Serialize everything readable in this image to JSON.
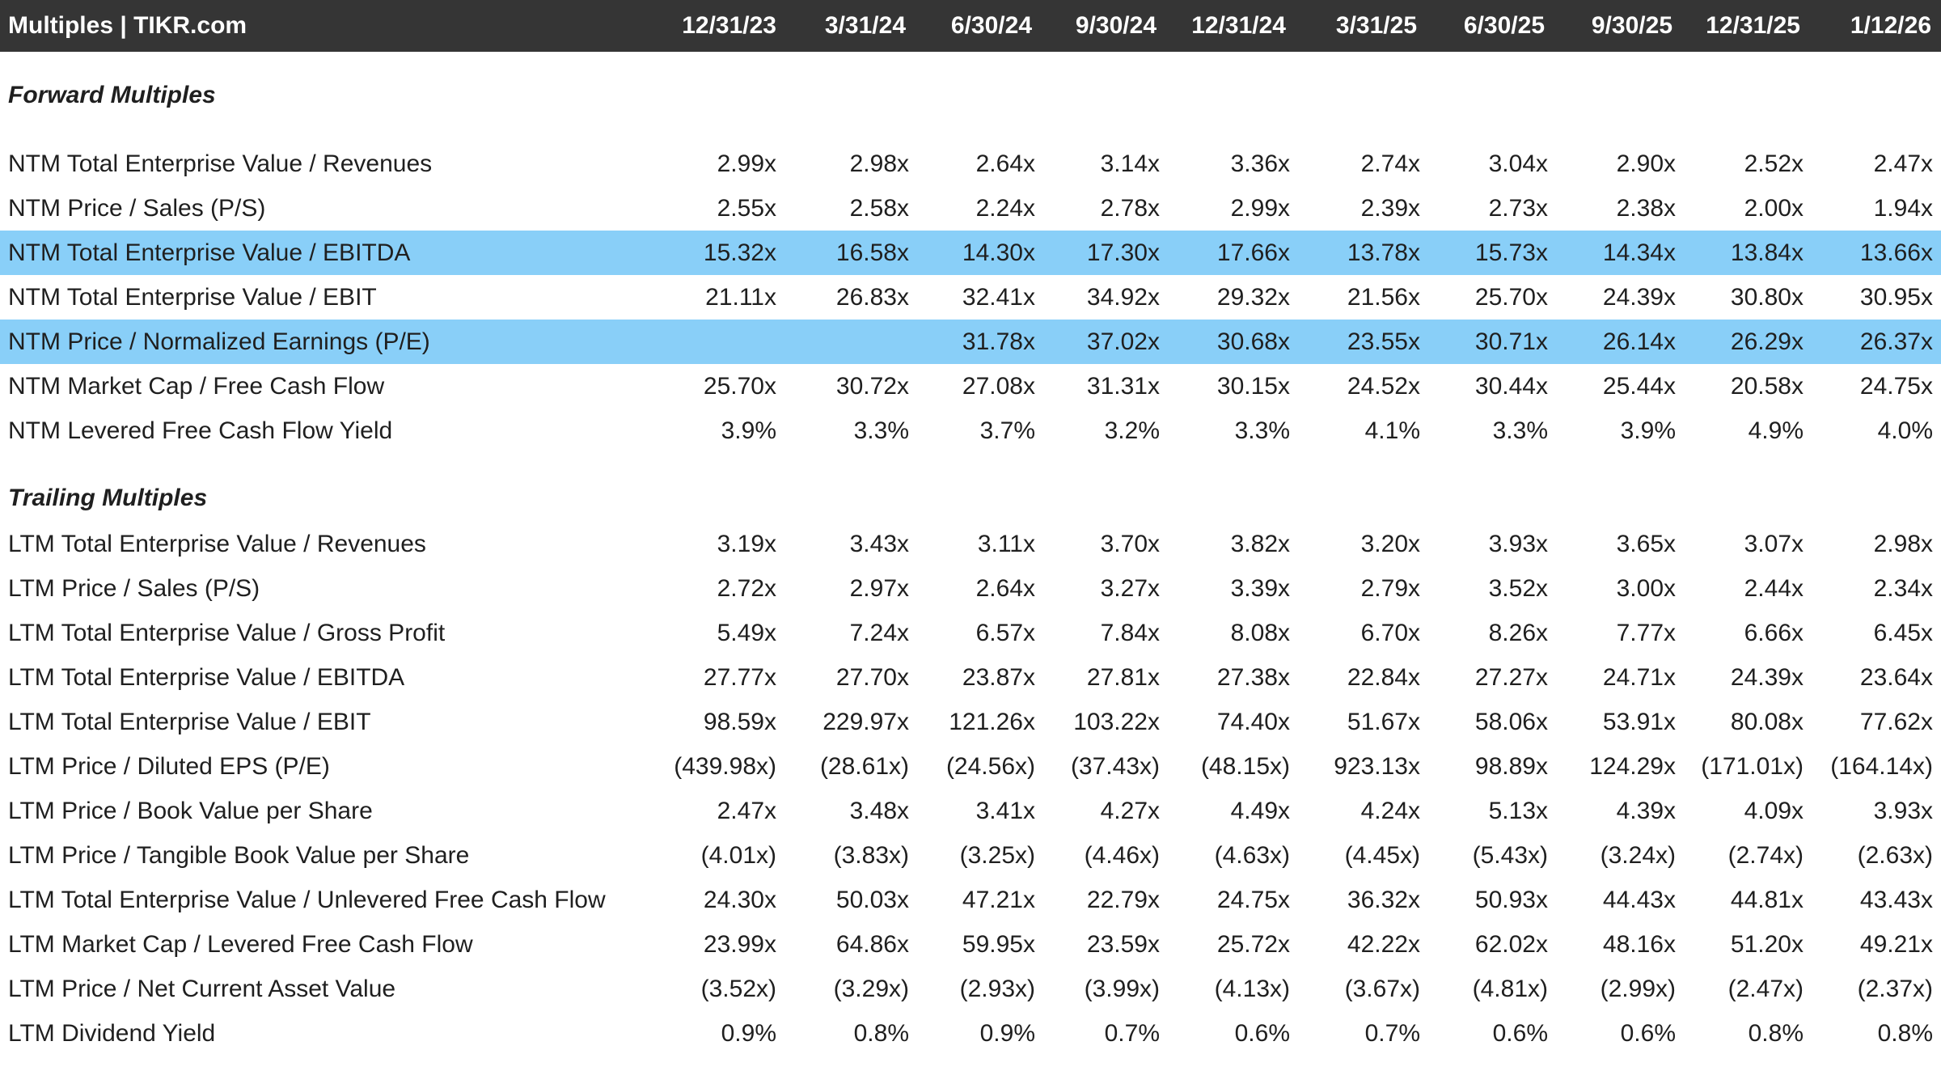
{
  "header": {
    "title": "Multiples | TIKR.com",
    "dates": [
      "12/31/23",
      "3/31/24",
      "6/30/24",
      "9/30/24",
      "12/31/24",
      "3/31/25",
      "6/30/25",
      "9/30/25",
      "12/31/25",
      "1/12/26"
    ]
  },
  "colors": {
    "header_bg": "#353535",
    "highlight": "#89cff8"
  },
  "sections": [
    {
      "title": "Forward Multiples",
      "rows": [
        {
          "label": "NTM Total Enterprise Value / Revenues",
          "highlight": false,
          "values": [
            "2.99x",
            "2.98x",
            "2.64x",
            "3.14x",
            "3.36x",
            "2.74x",
            "3.04x",
            "2.90x",
            "2.52x",
            "2.47x"
          ]
        },
        {
          "label": "NTM Price / Sales (P/S)",
          "highlight": false,
          "values": [
            "2.55x",
            "2.58x",
            "2.24x",
            "2.78x",
            "2.99x",
            "2.39x",
            "2.73x",
            "2.38x",
            "2.00x",
            "1.94x"
          ]
        },
        {
          "label": "NTM Total Enterprise Value / EBITDA",
          "highlight": true,
          "values": [
            "15.32x",
            "16.58x",
            "14.30x",
            "17.30x",
            "17.66x",
            "13.78x",
            "15.73x",
            "14.34x",
            "13.84x",
            "13.66x"
          ]
        },
        {
          "label": "NTM Total Enterprise Value / EBIT",
          "highlight": false,
          "values": [
            "21.11x",
            "26.83x",
            "32.41x",
            "34.92x",
            "29.32x",
            "21.56x",
            "25.70x",
            "24.39x",
            "30.80x",
            "30.95x"
          ]
        },
        {
          "label": "NTM Price / Normalized Earnings (P/E)",
          "highlight": true,
          "values": [
            "",
            "",
            "31.78x",
            "37.02x",
            "30.68x",
            "23.55x",
            "30.71x",
            "26.14x",
            "26.29x",
            "26.37x"
          ]
        },
        {
          "label": "NTM Market Cap / Free Cash Flow",
          "highlight": false,
          "values": [
            "25.70x",
            "30.72x",
            "27.08x",
            "31.31x",
            "30.15x",
            "24.52x",
            "30.44x",
            "25.44x",
            "20.58x",
            "24.75x"
          ]
        },
        {
          "label": "NTM Levered Free Cash Flow Yield",
          "highlight": false,
          "values": [
            "3.9%",
            "3.3%",
            "3.7%",
            "3.2%",
            "3.3%",
            "4.1%",
            "3.3%",
            "3.9%",
            "4.9%",
            "4.0%"
          ]
        }
      ]
    },
    {
      "title": "Trailing Multiples",
      "rows": [
        {
          "label": "LTM Total Enterprise Value / Revenues",
          "highlight": false,
          "values": [
            "3.19x",
            "3.43x",
            "3.11x",
            "3.70x",
            "3.82x",
            "3.20x",
            "3.93x",
            "3.65x",
            "3.07x",
            "2.98x"
          ]
        },
        {
          "label": "LTM Price / Sales (P/S)",
          "highlight": false,
          "values": [
            "2.72x",
            "2.97x",
            "2.64x",
            "3.27x",
            "3.39x",
            "2.79x",
            "3.52x",
            "3.00x",
            "2.44x",
            "2.34x"
          ]
        },
        {
          "label": "LTM Total Enterprise Value / Gross Profit",
          "highlight": false,
          "values": [
            "5.49x",
            "7.24x",
            "6.57x",
            "7.84x",
            "8.08x",
            "6.70x",
            "8.26x",
            "7.77x",
            "6.66x",
            "6.45x"
          ]
        },
        {
          "label": "LTM Total Enterprise Value / EBITDA",
          "highlight": false,
          "values": [
            "27.77x",
            "27.70x",
            "23.87x",
            "27.81x",
            "27.38x",
            "22.84x",
            "27.27x",
            "24.71x",
            "24.39x",
            "23.64x"
          ]
        },
        {
          "label": "LTM Total Enterprise Value / EBIT",
          "highlight": false,
          "values": [
            "98.59x",
            "229.97x",
            "121.26x",
            "103.22x",
            "74.40x",
            "51.67x",
            "58.06x",
            "53.91x",
            "80.08x",
            "77.62x"
          ]
        },
        {
          "label": "LTM Price / Diluted EPS (P/E)",
          "highlight": false,
          "values": [
            "(439.98x)",
            "(28.61x)",
            "(24.56x)",
            "(37.43x)",
            "(48.15x)",
            "923.13x",
            "98.89x",
            "124.29x",
            "(171.01x)",
            "(164.14x)"
          ]
        },
        {
          "label": "LTM Price / Book Value per Share",
          "highlight": false,
          "values": [
            "2.47x",
            "3.48x",
            "3.41x",
            "4.27x",
            "4.49x",
            "4.24x",
            "5.13x",
            "4.39x",
            "4.09x",
            "3.93x"
          ]
        },
        {
          "label": "LTM Price / Tangible Book Value per Share",
          "highlight": false,
          "values": [
            "(4.01x)",
            "(3.83x)",
            "(3.25x)",
            "(4.46x)",
            "(4.63x)",
            "(4.45x)",
            "(5.43x)",
            "(3.24x)",
            "(2.74x)",
            "(2.63x)"
          ]
        },
        {
          "label": "LTM Total Enterprise Value / Unlevered Free Cash Flow",
          "highlight": false,
          "values": [
            "24.30x",
            "50.03x",
            "47.21x",
            "22.79x",
            "24.75x",
            "36.32x",
            "50.93x",
            "44.43x",
            "44.81x",
            "43.43x"
          ]
        },
        {
          "label": "LTM Market Cap / Levered Free Cash Flow",
          "highlight": false,
          "values": [
            "23.99x",
            "64.86x",
            "59.95x",
            "23.59x",
            "25.72x",
            "42.22x",
            "62.02x",
            "48.16x",
            "51.20x",
            "49.21x"
          ]
        },
        {
          "label": "LTM Price / Net Current Asset Value",
          "highlight": false,
          "values": [
            "(3.52x)",
            "(3.29x)",
            "(2.93x)",
            "(3.99x)",
            "(4.13x)",
            "(3.67x)",
            "(4.81x)",
            "(2.99x)",
            "(2.47x)",
            "(2.37x)"
          ]
        },
        {
          "label": "LTM Dividend Yield",
          "highlight": false,
          "values": [
            "0.9%",
            "0.8%",
            "0.9%",
            "0.7%",
            "0.6%",
            "0.7%",
            "0.6%",
            "0.6%",
            "0.8%",
            "0.8%"
          ]
        }
      ]
    }
  ]
}
